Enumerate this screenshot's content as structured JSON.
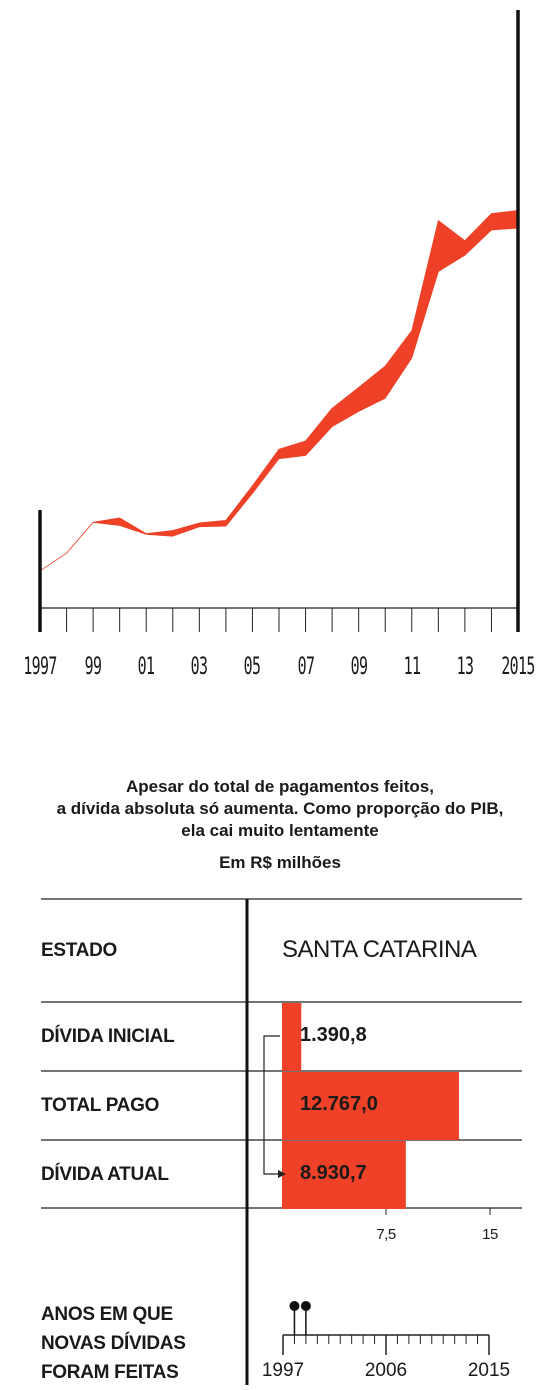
{
  "chart_data": [
    {
      "type": "area",
      "x_tick_labels": [
        "1997",
        "99",
        "01",
        "03",
        "05",
        "07",
        "09",
        "11",
        "13",
        "2015"
      ],
      "x_years": [
        1997,
        1998,
        1999,
        2000,
        2001,
        2002,
        2003,
        2004,
        2005,
        2006,
        2007,
        2008,
        2009,
        2010,
        2011,
        2012,
        2013,
        2014,
        2015
      ],
      "series": [
        {
          "values_upper": [
            0.59,
            0.87,
            1.36,
            1.43,
            1.18,
            1.23,
            1.35,
            1.39,
            1.94,
            2.52,
            2.65,
            3.17,
            3.5,
            3.84,
            4.4,
            6.15,
            5.83,
            6.26,
            6.31
          ]
        },
        {
          "values_lower": [
            0.59,
            0.87,
            1.36,
            1.31,
            1.17,
            1.14,
            1.29,
            1.3,
            1.82,
            2.37,
            2.42,
            2.88,
            3.12,
            3.33,
            3.97,
            5.34,
            5.6,
            6.0,
            6.03
          ]
        }
      ],
      "title": "",
      "xlabel": "",
      "ylabel": "",
      "grid": false,
      "color": "#ee4128"
    },
    {
      "type": "bar",
      "title": "Apesar do total de pagamentos feitos,\na dívida absoluta só aumenta. Como proporção do PIB,\nela cai muito lentamente",
      "subtitle": "Em R$ milhões",
      "column_header": "ESTADO",
      "state": "SANTA CATARINA",
      "categories": [
        "DÍVIDA INICIAL",
        "TOTAL PAGO",
        "DÍVIDA ATUAL"
      ],
      "values": [
        1.3908,
        12.767,
        8.9307
      ],
      "value_labels": [
        "1.390,8",
        "12.767,0",
        "8.930,7"
      ],
      "x_ticks": [
        7.5,
        15
      ],
      "x_tick_labels": [
        "7,5",
        "15"
      ],
      "xlim": [
        0,
        15
      ],
      "color": "#ee4128"
    },
    {
      "type": "scatter",
      "title": "ANOS EM QUE\nNOVAS DÍVIDAS\nFORAM FEITAS",
      "x_range": [
        1997,
        2015
      ],
      "x_tick_labels": [
        "1997",
        "2006",
        "2015"
      ],
      "events": [
        1998,
        1999
      ]
    }
  ],
  "labels": {
    "title_lines": [
      "Apesar do total de pagamentos feitos,",
      "a dívida absoluta só aumenta. Como proporção do PIB,",
      "ela cai muito lentamente"
    ],
    "subtitle": "Em R$ milhões",
    "estado": "ESTADO",
    "state": "SANTA CATARINA",
    "timeline_lines": [
      "ANOS EM QUE",
      "NOVAS DÍVIDAS",
      "FORAM FEITAS"
    ]
  }
}
